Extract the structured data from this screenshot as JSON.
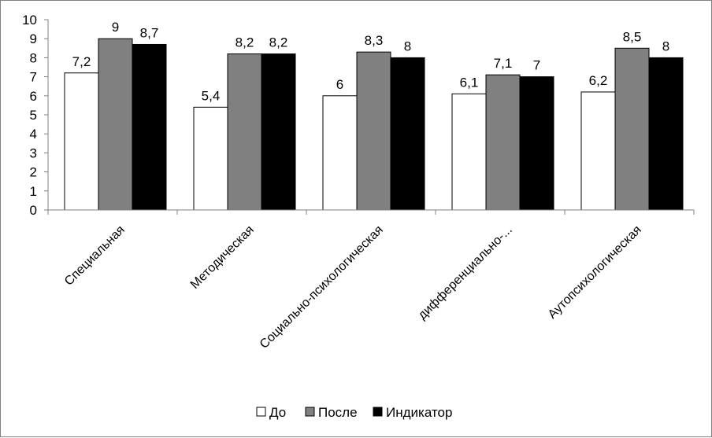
{
  "chart_data": {
    "type": "bar",
    "categories": [
      "Специальная",
      "Методическая",
      "Социально-психологическая",
      "дифференциально-...",
      "Аутопсихологическая"
    ],
    "series": [
      {
        "name": "До",
        "values": [
          7.2,
          5.4,
          6,
          6.1,
          6.2
        ],
        "labels": [
          "7,2",
          "5,4",
          "6",
          "6,1",
          "6,2"
        ],
        "color": "#ffffff"
      },
      {
        "name": "После",
        "values": [
          9,
          8.2,
          8.3,
          7.1,
          8.5
        ],
        "labels": [
          "9",
          "8,2",
          "8,3",
          "7,1",
          "8,5"
        ],
        "color": "#808080"
      },
      {
        "name": "Индикатор",
        "values": [
          8.7,
          8.2,
          8,
          7,
          8
        ],
        "labels": [
          "8,7",
          "8,2",
          "8",
          "7",
          "8"
        ],
        "color": "#000000"
      }
    ],
    "ylim": [
      0,
      10
    ],
    "yticks": [
      "0",
      "1",
      "2",
      "3",
      "4",
      "5",
      "6",
      "7",
      "8",
      "9",
      "10"
    ],
    "grid": false,
    "legend_position": "bottom",
    "title": "",
    "xlabel": "",
    "ylabel": ""
  }
}
